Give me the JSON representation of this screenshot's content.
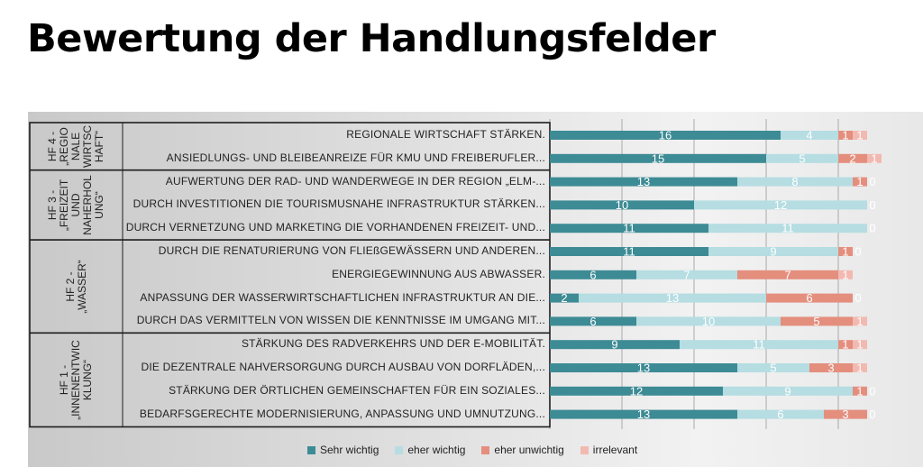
{
  "title": "Bewertung der Handlungsfelder",
  "colors": {
    "sehr_wichtig": "#3d8b95",
    "eher_wichtig": "#b5dde2",
    "eher_unwichtig": "#e48e7e",
    "irrelevant": "#f2b9b1"
  },
  "chart_data": {
    "type": "bar",
    "orientation": "horizontal",
    "stacked": true,
    "groups": [
      {
        "label": "HF 4 -\n„REGIO\nNALE\nWIRTSC\nHAFT“",
        "rows": [
          0,
          1
        ]
      },
      {
        "label": "HF 3 -\n„FREIZEIT\nUND\nNAHERHOL\nUNG“",
        "rows": [
          2,
          3,
          4
        ]
      },
      {
        "label": "HF 2 -\n„WASSER“",
        "rows": [
          5,
          6,
          7,
          8
        ]
      },
      {
        "label": "HF 1 -\n„INNENENTWIC\nKLUNG“",
        "rows": [
          9,
          10,
          11,
          12
        ]
      }
    ],
    "categories": [
      "REGIONALE WIRTSCHAFT STÄRKEN.",
      "ANSIEDLUNGS- UND BLEIBEANREIZE FÜR KMU UND FREIBERUFLER...",
      "AUFWERTUNG DER RAD- UND WANDERWEGE IN DER REGION „ELM-...",
      "DURCH INVESTITIONEN DIE TOURISMUSNAHE INFRASTRUKTUR STÄRKEN...",
      "DURCH VERNETZUNG UND MARKETING DIE VORHANDENEN FREIZEIT- UND...",
      "DURCH DIE RENATURIERUNG VON FLIEßGEWÄSSERN UND ANDEREN...",
      "ENERGIEGEWINNUNG AUS ABWASSER.",
      "ANPASSUNG DER WASSERWIRTSCHAFTLICHEN INFRASTRUKTUR AN DIE...",
      "DURCH DAS VERMITTELN VON WISSEN DIE KENNTNISSE IM UMGANG MIT...",
      "STÄRKUNG DES RADVERKEHRS UND DER E-MOBILITÄT.",
      "DIE DEZENTRALE NAHVERSORGUNG DURCH AUSBAU VON DORFLÄDEN,...",
      "STÄRKUNG DER ÖRTLICHEN GEMEINSCHAFTEN FÜR EIN SOZIALES...",
      "BEDARFSGERECHTE MODERNISIERUNG, ANPASSUNG UND UMNUTZUNG..."
    ],
    "series": [
      {
        "name": "Sehr wichtig",
        "color_key": "sehr_wichtig",
        "values": [
          16,
          15,
          13,
          10,
          11,
          11,
          6,
          2,
          6,
          9,
          13,
          12,
          13
        ]
      },
      {
        "name": "eher wichtig",
        "color_key": "eher_wichtig",
        "values": [
          4,
          5,
          8,
          12,
          11,
          9,
          7,
          13,
          10,
          11,
          5,
          9,
          6
        ]
      },
      {
        "name": "eher unwichtig",
        "color_key": "eher_unwichtig",
        "values": [
          1,
          2,
          1,
          0,
          0,
          1,
          7,
          6,
          5,
          1,
          3,
          1,
          3
        ]
      },
      {
        "name": "irrelevant",
        "color_key": "irrelevant",
        "values": [
          1,
          1,
          0,
          0,
          0,
          0,
          1,
          0,
          1,
          1,
          1,
          0,
          0
        ]
      }
    ],
    "xlim": [
      0,
      22
    ],
    "legend_position": "bottom",
    "grid": true
  }
}
